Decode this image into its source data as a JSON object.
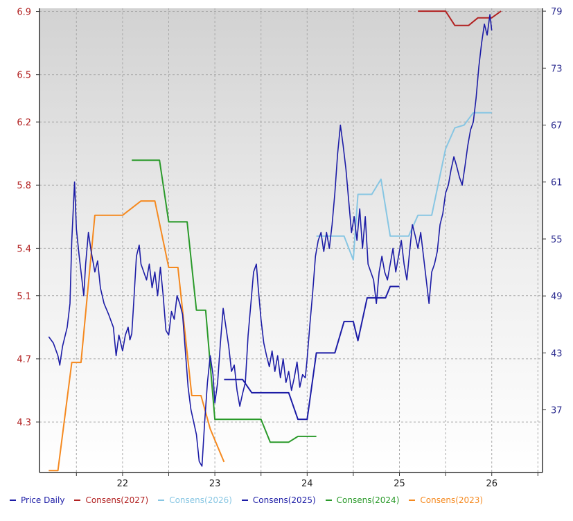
{
  "chart_data": {
    "type": "line",
    "left_axis": {
      "ticks": [
        "6.9",
        "6.5",
        "6.2",
        "5.8",
        "5.4",
        "5.1",
        "4.7",
        "4.3"
      ],
      "range": [
        3.98,
        6.92
      ],
      "color": "#b22222"
    },
    "right_axis": {
      "ticks": [
        "79",
        "73",
        "67",
        "61",
        "55",
        "49",
        "43",
        "37"
      ],
      "range": [
        30.4,
        79.3
      ],
      "color": "#2b2b8f"
    },
    "x_axis": {
      "ticks": [
        "22",
        "23",
        "24",
        "25",
        "26"
      ],
      "range": [
        21.1,
        26.55
      ]
    },
    "grid": true,
    "legend_position": "bottom",
    "series": [
      {
        "name": "Price Daily",
        "axis": "left",
        "color": "#1c1ca6",
        "points": [
          [
            21.2,
            4.84
          ],
          [
            21.25,
            4.8
          ],
          [
            21.3,
            4.72
          ],
          [
            21.32,
            4.66
          ],
          [
            21.35,
            4.78
          ],
          [
            21.4,
            4.9
          ],
          [
            21.43,
            5.05
          ],
          [
            21.45,
            5.45
          ],
          [
            21.48,
            5.82
          ],
          [
            21.5,
            5.52
          ],
          [
            21.53,
            5.35
          ],
          [
            21.56,
            5.2
          ],
          [
            21.58,
            5.1
          ],
          [
            21.6,
            5.3
          ],
          [
            21.63,
            5.5
          ],
          [
            21.66,
            5.38
          ],
          [
            21.7,
            5.25
          ],
          [
            21.73,
            5.32
          ],
          [
            21.76,
            5.15
          ],
          [
            21.8,
            5.05
          ],
          [
            21.85,
            4.98
          ],
          [
            21.9,
            4.9
          ],
          [
            21.93,
            4.72
          ],
          [
            21.96,
            4.85
          ],
          [
            22.0,
            4.75
          ],
          [
            22.03,
            4.85
          ],
          [
            22.06,
            4.9
          ],
          [
            22.08,
            4.82
          ],
          [
            22.1,
            4.86
          ],
          [
            22.12,
            5.05
          ],
          [
            22.15,
            5.35
          ],
          [
            22.18,
            5.42
          ],
          [
            22.2,
            5.3
          ],
          [
            22.23,
            5.25
          ],
          [
            22.26,
            5.2
          ],
          [
            22.29,
            5.3
          ],
          [
            22.32,
            5.15
          ],
          [
            22.35,
            5.25
          ],
          [
            22.38,
            5.1
          ],
          [
            22.41,
            5.28
          ],
          [
            22.44,
            5.1
          ],
          [
            22.47,
            4.88
          ],
          [
            22.5,
            4.85
          ],
          [
            22.53,
            5.0
          ],
          [
            22.56,
            4.95
          ],
          [
            22.59,
            5.1
          ],
          [
            22.62,
            5.05
          ],
          [
            22.65,
            4.98
          ],
          [
            22.68,
            4.75
          ],
          [
            22.71,
            4.52
          ],
          [
            22.74,
            4.38
          ],
          [
            22.77,
            4.3
          ],
          [
            22.8,
            4.22
          ],
          [
            22.83,
            4.05
          ],
          [
            22.86,
            4.02
          ],
          [
            22.89,
            4.3
          ],
          [
            22.92,
            4.55
          ],
          [
            22.95,
            4.72
          ],
          [
            22.98,
            4.6
          ],
          [
            23.0,
            4.42
          ],
          [
            23.03,
            4.55
          ],
          [
            23.06,
            4.8
          ],
          [
            23.09,
            5.02
          ],
          [
            23.12,
            4.9
          ],
          [
            23.15,
            4.78
          ],
          [
            23.18,
            4.62
          ],
          [
            23.21,
            4.66
          ],
          [
            23.24,
            4.5
          ],
          [
            23.27,
            4.4
          ],
          [
            23.3,
            4.48
          ],
          [
            23.33,
            4.55
          ],
          [
            23.36,
            4.85
          ],
          [
            23.39,
            5.05
          ],
          [
            23.42,
            5.25
          ],
          [
            23.45,
            5.3
          ],
          [
            23.47,
            5.15
          ],
          [
            23.5,
            4.95
          ],
          [
            23.53,
            4.8
          ],
          [
            23.56,
            4.72
          ],
          [
            23.59,
            4.65
          ],
          [
            23.62,
            4.75
          ],
          [
            23.65,
            4.62
          ],
          [
            23.68,
            4.72
          ],
          [
            23.71,
            4.58
          ],
          [
            23.74,
            4.7
          ],
          [
            23.77,
            4.55
          ],
          [
            23.8,
            4.62
          ],
          [
            23.83,
            4.5
          ],
          [
            23.86,
            4.58
          ],
          [
            23.89,
            4.68
          ],
          [
            23.92,
            4.52
          ],
          [
            23.95,
            4.6
          ],
          [
            23.98,
            4.58
          ],
          [
            24.0,
            4.7
          ],
          [
            24.03,
            4.92
          ],
          [
            24.06,
            5.12
          ],
          [
            24.09,
            5.35
          ],
          [
            24.12,
            5.45
          ],
          [
            24.15,
            5.5
          ],
          [
            24.18,
            5.38
          ],
          [
            24.21,
            5.5
          ],
          [
            24.24,
            5.4
          ],
          [
            24.27,
            5.55
          ],
          [
            24.3,
            5.75
          ],
          [
            24.33,
            6.0
          ],
          [
            24.36,
            6.18
          ],
          [
            24.39,
            6.05
          ],
          [
            24.42,
            5.9
          ],
          [
            24.45,
            5.7
          ],
          [
            24.48,
            5.5
          ],
          [
            24.51,
            5.6
          ],
          [
            24.54,
            5.45
          ],
          [
            24.57,
            5.65
          ],
          [
            24.6,
            5.4
          ],
          [
            24.63,
            5.6
          ],
          [
            24.66,
            5.3
          ],
          [
            24.69,
            5.25
          ],
          [
            24.72,
            5.2
          ],
          [
            24.75,
            5.05
          ],
          [
            24.78,
            5.25
          ],
          [
            24.81,
            5.35
          ],
          [
            24.84,
            5.25
          ],
          [
            24.87,
            5.2
          ],
          [
            24.9,
            5.3
          ],
          [
            24.93,
            5.4
          ],
          [
            24.96,
            5.25
          ],
          [
            24.99,
            5.35
          ],
          [
            25.02,
            5.45
          ],
          [
            25.05,
            5.3
          ],
          [
            25.08,
            5.2
          ],
          [
            25.11,
            5.38
          ],
          [
            25.14,
            5.55
          ],
          [
            25.17,
            5.48
          ],
          [
            25.2,
            5.4
          ],
          [
            25.23,
            5.5
          ],
          [
            25.26,
            5.35
          ],
          [
            25.29,
            5.2
          ],
          [
            25.32,
            5.05
          ],
          [
            25.35,
            5.25
          ],
          [
            25.38,
            5.3
          ],
          [
            25.41,
            5.38
          ],
          [
            25.44,
            5.55
          ],
          [
            25.47,
            5.62
          ],
          [
            25.5,
            5.75
          ],
          [
            25.53,
            5.8
          ],
          [
            25.56,
            5.9
          ],
          [
            25.59,
            5.98
          ],
          [
            25.62,
            5.92
          ],
          [
            25.65,
            5.85
          ],
          [
            25.68,
            5.8
          ],
          [
            25.71,
            5.92
          ],
          [
            25.74,
            6.05
          ],
          [
            25.77,
            6.15
          ],
          [
            25.8,
            6.2
          ],
          [
            25.83,
            6.35
          ],
          [
            25.86,
            6.55
          ],
          [
            25.89,
            6.7
          ],
          [
            25.92,
            6.82
          ],
          [
            25.95,
            6.75
          ],
          [
            25.98,
            6.88
          ],
          [
            26.0,
            6.78
          ]
        ]
      },
      {
        "name": "Consens(2027)",
        "axis": "right",
        "color": "#b22222",
        "points": [
          [
            25.2,
            79.0
          ],
          [
            25.5,
            79.0
          ],
          [
            25.6,
            77.5
          ],
          [
            25.75,
            77.5
          ],
          [
            25.85,
            78.3
          ],
          [
            26.0,
            78.3
          ],
          [
            26.1,
            79.0
          ]
        ]
      },
      {
        "name": "Consens(2026)",
        "axis": "right",
        "color": "#87c6e3",
        "points": [
          [
            24.1,
            55.3
          ],
          [
            24.4,
            55.3
          ],
          [
            24.5,
            52.8
          ],
          [
            24.55,
            59.7
          ],
          [
            24.7,
            59.7
          ],
          [
            24.8,
            61.3
          ],
          [
            24.9,
            55.3
          ],
          [
            25.1,
            55.3
          ],
          [
            25.2,
            57.5
          ],
          [
            25.35,
            57.5
          ],
          [
            25.5,
            64.5
          ],
          [
            25.6,
            66.7
          ],
          [
            25.7,
            67.0
          ],
          [
            25.8,
            68.3
          ],
          [
            26.0,
            68.3
          ]
        ]
      },
      {
        "name": "Consens(2025)",
        "axis": "right",
        "color": "#1c1ca6",
        "points": [
          [
            23.1,
            40.2
          ],
          [
            23.3,
            40.2
          ],
          [
            23.4,
            38.8
          ],
          [
            23.8,
            38.8
          ],
          [
            23.9,
            36.0
          ],
          [
            24.0,
            36.0
          ],
          [
            24.1,
            43.0
          ],
          [
            24.3,
            43.0
          ],
          [
            24.4,
            46.3
          ],
          [
            24.5,
            46.3
          ],
          [
            24.55,
            44.3
          ],
          [
            24.65,
            48.8
          ],
          [
            24.85,
            48.8
          ],
          [
            24.9,
            50.0
          ],
          [
            25.0,
            50.0
          ]
        ]
      },
      {
        "name": "Consens(2024)",
        "axis": "right",
        "color": "#2a9a2a",
        "points": [
          [
            22.1,
            63.3
          ],
          [
            22.4,
            63.3
          ],
          [
            22.5,
            56.8
          ],
          [
            22.7,
            56.8
          ],
          [
            22.8,
            47.5
          ],
          [
            22.9,
            47.5
          ],
          [
            23.0,
            36.0
          ],
          [
            23.5,
            36.0
          ],
          [
            23.6,
            33.6
          ],
          [
            23.8,
            33.6
          ],
          [
            23.9,
            34.2
          ],
          [
            24.1,
            34.2
          ]
        ]
      },
      {
        "name": "Consens(2023)",
        "axis": "right",
        "color": "#f5891f",
        "points": [
          [
            21.2,
            30.6
          ],
          [
            21.3,
            30.6
          ],
          [
            21.45,
            42.0
          ],
          [
            21.55,
            42.0
          ],
          [
            21.7,
            57.5
          ],
          [
            22.0,
            57.5
          ],
          [
            22.2,
            59.0
          ],
          [
            22.35,
            59.0
          ],
          [
            22.5,
            52.0
          ],
          [
            22.6,
            52.0
          ],
          [
            22.75,
            38.5
          ],
          [
            22.85,
            38.5
          ],
          [
            22.95,
            35.0
          ],
          [
            23.1,
            31.5
          ]
        ]
      }
    ]
  }
}
